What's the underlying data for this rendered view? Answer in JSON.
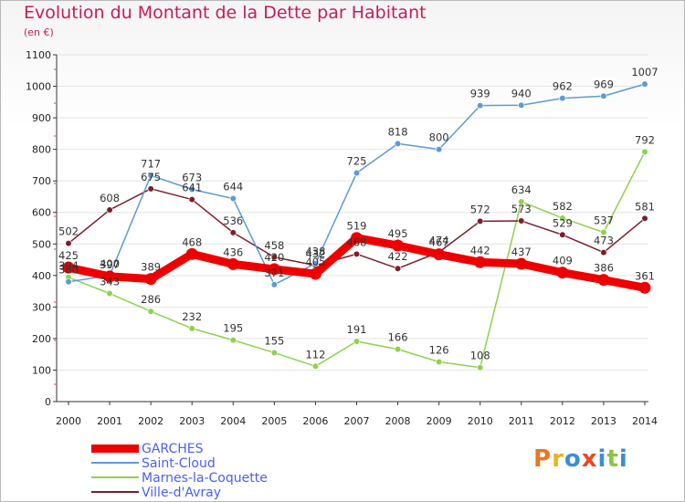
{
  "title": "Evolution du Montant de la Dette par Habitant",
  "unit_label": "(en €)",
  "logo_text": "Proxiti",
  "colors": {
    "title": "#c41c5c",
    "axis": "#333333",
    "grid": "#e4e4e4",
    "legend_text": "#4a5ef2",
    "logo_letters": [
      "#e87722",
      "#e8b322",
      "#3a8fd6",
      "#e84a22",
      "#3a8fd6",
      "#8bc34a",
      "#3a8fd6"
    ]
  },
  "chart_data": {
    "type": "line",
    "title": "Evolution du Montant de la Dette par Habitant",
    "ylabel": "(en €)",
    "xlabel": "",
    "ylim": [
      0,
      1100
    ],
    "yticks": [
      0,
      100,
      200,
      300,
      400,
      500,
      600,
      700,
      800,
      900,
      1000,
      1100
    ],
    "grid": true,
    "legend_position": "bottom-left",
    "x": [
      "2000",
      "2001",
      "2002",
      "2003",
      "2004",
      "2005",
      "2006",
      "2007",
      "2008",
      "2009",
      "2010",
      "2011",
      "2012",
      "2013",
      "2014"
    ],
    "series": [
      {
        "name": "GARCHES",
        "color": "#ee0000",
        "values": [
          425,
          397,
          389,
          468,
          436,
          420,
          405,
          519,
          495,
          467,
          442,
          437,
          409,
          386,
          361
        ]
      },
      {
        "name": "Saint-Cloud",
        "color": "#5b9bd5",
        "values": [
          380,
          400,
          717,
          673,
          644,
          371,
          438,
          725,
          818,
          800,
          939,
          940,
          962,
          969,
          1007
        ]
      },
      {
        "name": "Marnes-la-Coquette",
        "color": "#8fd14f",
        "values": [
          394,
          343,
          286,
          232,
          195,
          155,
          112,
          191,
          166,
          126,
          108,
          634,
          582,
          537,
          792
        ]
      },
      {
        "name": "Ville-d'Avray",
        "color": "#7b1f2a",
        "values": [
          502,
          608,
          675,
          641,
          536,
          458,
          432,
          468,
          422,
          474,
          572,
          573,
          529,
          473,
          581
        ]
      }
    ]
  }
}
